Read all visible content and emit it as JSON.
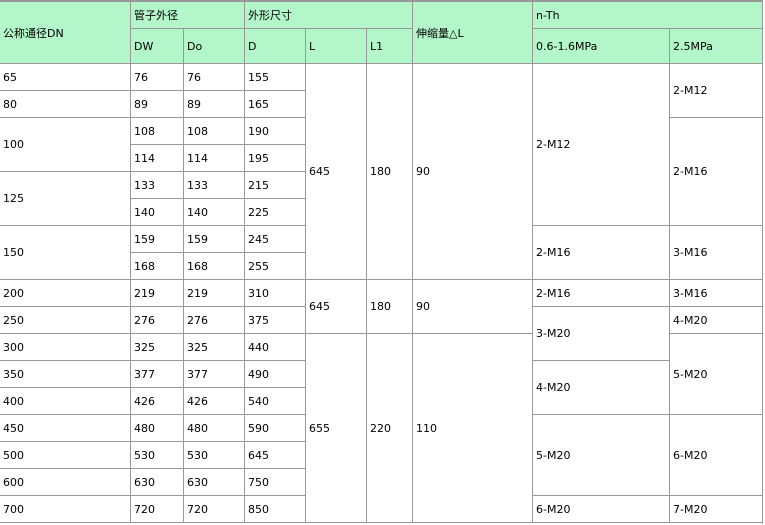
{
  "header": {
    "dn": "公称通径DN",
    "pipe_od": "管子外径",
    "dims": "外形尺寸",
    "delta_l": "伸缩量△L",
    "nth": "n-Th",
    "dw": "DW",
    "do": "Do",
    "d": "D",
    "l": "L",
    "l1": "L1",
    "p1": "0.6-1.6MPa",
    "p2": "2.5MPa"
  },
  "columns": {
    "dn": [
      {
        "text": "65",
        "span": 1
      },
      {
        "text": "80",
        "span": 1
      },
      {
        "text": "100",
        "span": 2
      },
      {
        "text": "125",
        "span": 2
      },
      {
        "text": "150",
        "span": 2
      },
      {
        "text": "200",
        "span": 1
      },
      {
        "text": "250",
        "span": 1
      },
      {
        "text": "300",
        "span": 1
      },
      {
        "text": "350",
        "span": 1
      },
      {
        "text": "400",
        "span": 1
      },
      {
        "text": "450",
        "span": 1
      },
      {
        "text": "500",
        "span": 1
      },
      {
        "text": "600",
        "span": 1
      },
      {
        "text": "700",
        "span": 1
      }
    ],
    "dw": [
      {
        "text": "76",
        "span": 1
      },
      {
        "text": "89",
        "span": 1
      },
      {
        "text": "108",
        "span": 1
      },
      {
        "text": "114",
        "span": 1
      },
      {
        "text": "133",
        "span": 1
      },
      {
        "text": "140",
        "span": 1
      },
      {
        "text": "159",
        "span": 1
      },
      {
        "text": "168",
        "span": 1
      },
      {
        "text": "219",
        "span": 1
      },
      {
        "text": "276",
        "span": 1
      },
      {
        "text": "325",
        "span": 1
      },
      {
        "text": "377",
        "span": 1
      },
      {
        "text": "426",
        "span": 1
      },
      {
        "text": "480",
        "span": 1
      },
      {
        "text": "530",
        "span": 1
      },
      {
        "text": "630",
        "span": 1
      },
      {
        "text": "720",
        "span": 1
      }
    ],
    "do": [
      {
        "text": "76",
        "span": 1
      },
      {
        "text": "89",
        "span": 1
      },
      {
        "text": "108",
        "span": 1
      },
      {
        "text": "114",
        "span": 1
      },
      {
        "text": "133",
        "span": 1
      },
      {
        "text": "140",
        "span": 1
      },
      {
        "text": "159",
        "span": 1
      },
      {
        "text": "168",
        "span": 1
      },
      {
        "text": "219",
        "span": 1
      },
      {
        "text": "276",
        "span": 1
      },
      {
        "text": "325",
        "span": 1
      },
      {
        "text": "377",
        "span": 1
      },
      {
        "text": "426",
        "span": 1
      },
      {
        "text": "480",
        "span": 1
      },
      {
        "text": "530",
        "span": 1
      },
      {
        "text": "630",
        "span": 1
      },
      {
        "text": "720",
        "span": 1
      }
    ],
    "d": [
      {
        "text": "155",
        "span": 1
      },
      {
        "text": "165",
        "span": 1
      },
      {
        "text": "190",
        "span": 1
      },
      {
        "text": "195",
        "span": 1
      },
      {
        "text": "215",
        "span": 1
      },
      {
        "text": "225",
        "span": 1
      },
      {
        "text": "245",
        "span": 1
      },
      {
        "text": "255",
        "span": 1
      },
      {
        "text": "310",
        "span": 1
      },
      {
        "text": "375",
        "span": 1
      },
      {
        "text": "440",
        "span": 1
      },
      {
        "text": "490",
        "span": 1
      },
      {
        "text": "540",
        "span": 1
      },
      {
        "text": "590",
        "span": 1
      },
      {
        "text": "645",
        "span": 1
      },
      {
        "text": "750",
        "span": 1
      },
      {
        "text": "850",
        "span": 1
      }
    ],
    "l": [
      {
        "text": "645",
        "span": 8
      },
      {
        "text": "645",
        "span": 2
      },
      {
        "text": "655",
        "span": 7
      }
    ],
    "l1": [
      {
        "text": "180",
        "span": 8
      },
      {
        "text": "180",
        "span": 2
      },
      {
        "text": "220",
        "span": 7
      }
    ],
    "delta_l": [
      {
        "text": "90",
        "span": 8
      },
      {
        "text": "90",
        "span": 2
      },
      {
        "text": "110",
        "span": 7
      }
    ],
    "p1": [
      {
        "text": "2-M12",
        "span": 6
      },
      {
        "text": "2-M16",
        "span": 2
      },
      {
        "text": "2-M16",
        "span": 1
      },
      {
        "text": "3-M20",
        "span": 2
      },
      {
        "text": "4-M20",
        "span": 2
      },
      {
        "text": "5-M20",
        "span": 3
      },
      {
        "text": "6-M20",
        "span": 1
      }
    ],
    "p2": [
      {
        "text": "2-M12",
        "span": 2
      },
      {
        "text": "2-M16",
        "span": 4
      },
      {
        "text": "3-M16",
        "span": 2
      },
      {
        "text": "3-M16",
        "span": 1
      },
      {
        "text": "4-M20",
        "span": 1
      },
      {
        "text": "5-M20",
        "span": 3
      },
      {
        "text": "6-M20",
        "span": 3
      },
      {
        "text": "7-M20",
        "span": 1
      }
    ]
  }
}
